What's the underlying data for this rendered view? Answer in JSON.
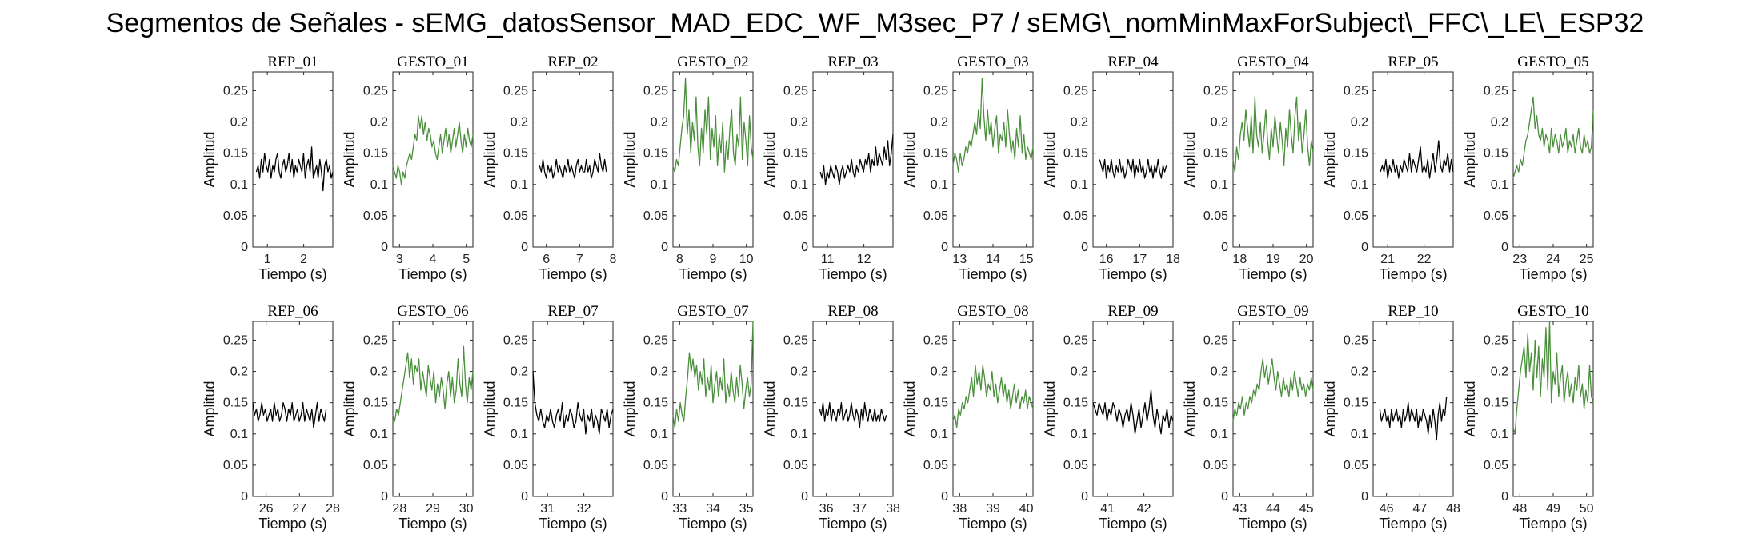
{
  "title": "Segmentos de Señales - sEMG_datosSensor_MAD_EDC_WF_M3sec_P7 / sEMG\\_nomMinMaxForSubject\\_FFC\\_LE\\_ESP32",
  "colors": {
    "rep": "#000000",
    "gesto": "#4a8f3b",
    "axis": "#262626"
  },
  "chart_data": {
    "type": "line",
    "xlabel": "Tiempo (s)",
    "ylabel": "Amplitud",
    "ylim": [
      0,
      0.28
    ],
    "yticks": [
      0,
      0.05,
      0.1,
      0.15,
      0.2,
      0.25
    ],
    "yticklabels": [
      "0",
      "0.05",
      "0.1",
      "0.15",
      "0.2",
      "0.25"
    ],
    "panels": [
      {
        "title": "REP_01",
        "kind": "rep",
        "xlim": [
          0.6,
          2.8
        ],
        "xticks": [
          1,
          2
        ],
        "x_start": 0.7,
        "x_end": 2.8,
        "values": [
          0.12,
          0.13,
          0.11,
          0.14,
          0.12,
          0.15,
          0.13,
          0.12,
          0.14,
          0.11,
          0.13,
          0.12,
          0.14,
          0.15,
          0.12,
          0.11,
          0.13,
          0.14,
          0.12,
          0.13,
          0.15,
          0.12,
          0.14,
          0.11,
          0.13,
          0.12,
          0.14,
          0.13,
          0.12,
          0.15,
          0.11,
          0.13,
          0.14,
          0.12,
          0.16,
          0.11,
          0.12,
          0.13,
          0.11,
          0.14,
          0.12,
          0.09,
          0.13,
          0.14,
          0.12,
          0.13,
          0.11,
          0.12
        ]
      },
      {
        "title": "GESTO_01",
        "kind": "gesto",
        "xlim": [
          2.8,
          5.2
        ],
        "xticks": [
          3,
          4,
          5
        ],
        "x_start": 2.8,
        "x_end": 5.2,
        "values": [
          0.13,
          0.12,
          0.11,
          0.13,
          0.12,
          0.1,
          0.12,
          0.11,
          0.13,
          0.14,
          0.15,
          0.14,
          0.16,
          0.18,
          0.17,
          0.21,
          0.19,
          0.21,
          0.18,
          0.2,
          0.17,
          0.19,
          0.18,
          0.16,
          0.17,
          0.15,
          0.14,
          0.16,
          0.18,
          0.15,
          0.17,
          0.19,
          0.16,
          0.18,
          0.15,
          0.17,
          0.19,
          0.16,
          0.18,
          0.2,
          0.17,
          0.15,
          0.18,
          0.16,
          0.19,
          0.17,
          0.16,
          0.18
        ]
      },
      {
        "title": "REP_02",
        "kind": "rep",
        "xlim": [
          5.6,
          8.0
        ],
        "xticks": [
          6,
          7,
          8
        ],
        "x_start": 5.8,
        "x_end": 7.8,
        "values": [
          0.13,
          0.12,
          0.14,
          0.12,
          0.11,
          0.13,
          0.12,
          0.13,
          0.11,
          0.12,
          0.14,
          0.12,
          0.13,
          0.12,
          0.11,
          0.13,
          0.12,
          0.14,
          0.12,
          0.13,
          0.12,
          0.11,
          0.13,
          0.14,
          0.12,
          0.13,
          0.12,
          0.12,
          0.14,
          0.12,
          0.13,
          0.11,
          0.12,
          0.14,
          0.13,
          0.12,
          0.15,
          0.13,
          0.12,
          0.14,
          0.12
        ]
      },
      {
        "title": "GESTO_02",
        "kind": "gesto",
        "xlim": [
          7.8,
          10.2
        ],
        "xticks": [
          8,
          9,
          10
        ],
        "x_start": 7.8,
        "x_end": 10.2,
        "values": [
          0.13,
          0.12,
          0.14,
          0.13,
          0.16,
          0.19,
          0.21,
          0.27,
          0.18,
          0.22,
          0.15,
          0.2,
          0.17,
          0.24,
          0.16,
          0.13,
          0.19,
          0.15,
          0.22,
          0.18,
          0.24,
          0.14,
          0.19,
          0.16,
          0.21,
          0.13,
          0.18,
          0.15,
          0.2,
          0.12,
          0.17,
          0.14,
          0.19,
          0.22,
          0.15,
          0.13,
          0.18,
          0.16,
          0.24,
          0.14,
          0.2,
          0.17,
          0.13,
          0.21,
          0.16,
          0.14
        ]
      },
      {
        "title": "REP_03",
        "kind": "rep",
        "xlim": [
          10.6,
          12.8
        ],
        "xticks": [
          11,
          12
        ],
        "x_start": 10.8,
        "x_end": 12.8,
        "values": [
          0.12,
          0.11,
          0.13,
          0.1,
          0.12,
          0.11,
          0.13,
          0.12,
          0.11,
          0.13,
          0.12,
          0.1,
          0.12,
          0.13,
          0.11,
          0.12,
          0.13,
          0.12,
          0.14,
          0.12,
          0.11,
          0.13,
          0.12,
          0.14,
          0.13,
          0.12,
          0.14,
          0.13,
          0.15,
          0.12,
          0.14,
          0.13,
          0.16,
          0.13,
          0.15,
          0.14,
          0.13,
          0.16,
          0.14,
          0.17,
          0.13,
          0.15,
          0.18
        ]
      },
      {
        "title": "GESTO_03",
        "kind": "gesto",
        "xlim": [
          12.8,
          15.2
        ],
        "xticks": [
          13,
          14,
          15
        ],
        "x_start": 12.8,
        "x_end": 15.2,
        "values": [
          0.13,
          0.15,
          0.14,
          0.12,
          0.15,
          0.13,
          0.14,
          0.16,
          0.15,
          0.17,
          0.16,
          0.18,
          0.2,
          0.18,
          0.22,
          0.19,
          0.27,
          0.21,
          0.17,
          0.22,
          0.18,
          0.2,
          0.16,
          0.19,
          0.21,
          0.15,
          0.18,
          0.17,
          0.2,
          0.16,
          0.22,
          0.18,
          0.15,
          0.17,
          0.14,
          0.19,
          0.16,
          0.21,
          0.15,
          0.18,
          0.14,
          0.16,
          0.15,
          0.14,
          0.16
        ]
      },
      {
        "title": "REP_04",
        "kind": "rep",
        "xlim": [
          15.6,
          18.0
        ],
        "xticks": [
          16,
          17,
          18
        ],
        "x_start": 15.8,
        "x_end": 17.8,
        "values": [
          0.14,
          0.13,
          0.12,
          0.14,
          0.11,
          0.13,
          0.12,
          0.14,
          0.12,
          0.11,
          0.13,
          0.12,
          0.14,
          0.12,
          0.13,
          0.11,
          0.12,
          0.14,
          0.13,
          0.12,
          0.14,
          0.11,
          0.13,
          0.12,
          0.14,
          0.12,
          0.13,
          0.11,
          0.12,
          0.14,
          0.12,
          0.13,
          0.11,
          0.13,
          0.12,
          0.14,
          0.12,
          0.11,
          0.13,
          0.12,
          0.13
        ]
      },
      {
        "title": "GESTO_04",
        "kind": "gesto",
        "xlim": [
          17.8,
          20.2
        ],
        "xticks": [
          18,
          19,
          20
        ],
        "x_start": 17.8,
        "x_end": 20.2,
        "values": [
          0.14,
          0.12,
          0.16,
          0.14,
          0.18,
          0.2,
          0.17,
          0.22,
          0.19,
          0.16,
          0.21,
          0.15,
          0.24,
          0.18,
          0.16,
          0.2,
          0.15,
          0.18,
          0.22,
          0.17,
          0.14,
          0.19,
          0.16,
          0.21,
          0.18,
          0.15,
          0.2,
          0.17,
          0.13,
          0.19,
          0.16,
          0.22,
          0.18,
          0.15,
          0.21,
          0.24,
          0.17,
          0.2,
          0.15,
          0.18,
          0.22,
          0.16,
          0.13,
          0.17,
          0.15
        ]
      },
      {
        "title": "REP_05",
        "kind": "rep",
        "xlim": [
          20.6,
          22.8
        ],
        "xticks": [
          21,
          22
        ],
        "x_start": 20.8,
        "x_end": 22.8,
        "values": [
          0.12,
          0.13,
          0.12,
          0.14,
          0.11,
          0.13,
          0.12,
          0.14,
          0.12,
          0.13,
          0.11,
          0.13,
          0.12,
          0.14,
          0.13,
          0.12,
          0.15,
          0.12,
          0.14,
          0.13,
          0.12,
          0.14,
          0.16,
          0.12,
          0.13,
          0.12,
          0.14,
          0.11,
          0.13,
          0.15,
          0.12,
          0.14,
          0.17,
          0.13,
          0.12,
          0.14,
          0.13,
          0.15,
          0.12,
          0.14,
          0.12
        ]
      },
      {
        "title": "GESTO_05",
        "kind": "gesto",
        "xlim": [
          22.8,
          25.2
        ],
        "xticks": [
          23,
          24,
          25
        ],
        "x_start": 22.8,
        "x_end": 25.2,
        "values": [
          0.11,
          0.12,
          0.13,
          0.12,
          0.14,
          0.13,
          0.15,
          0.17,
          0.18,
          0.2,
          0.22,
          0.24,
          0.19,
          0.21,
          0.18,
          0.17,
          0.19,
          0.16,
          0.18,
          0.17,
          0.15,
          0.19,
          0.16,
          0.18,
          0.17,
          0.15,
          0.18,
          0.16,
          0.17,
          0.19,
          0.15,
          0.17,
          0.16,
          0.18,
          0.15,
          0.17,
          0.19,
          0.16,
          0.15,
          0.18,
          0.16,
          0.17,
          0.15,
          0.16,
          0.22
        ]
      },
      {
        "title": "REP_06",
        "kind": "rep",
        "xlim": [
          25.6,
          28.0
        ],
        "xticks": [
          26,
          27,
          28
        ],
        "x_start": 25.6,
        "x_end": 27.8,
        "values": [
          0.15,
          0.13,
          0.14,
          0.12,
          0.13,
          0.15,
          0.13,
          0.14,
          0.12,
          0.13,
          0.14,
          0.12,
          0.15,
          0.13,
          0.14,
          0.12,
          0.13,
          0.15,
          0.14,
          0.12,
          0.14,
          0.13,
          0.15,
          0.12,
          0.13,
          0.14,
          0.12,
          0.13,
          0.15,
          0.12,
          0.14,
          0.13,
          0.12,
          0.14,
          0.11,
          0.13,
          0.15,
          0.12,
          0.14,
          0.13,
          0.12,
          0.14
        ]
      },
      {
        "title": "GESTO_06",
        "kind": "gesto",
        "xlim": [
          27.8,
          30.2
        ],
        "xticks": [
          28,
          29,
          30
        ],
        "x_start": 27.8,
        "x_end": 30.2,
        "values": [
          0.13,
          0.12,
          0.14,
          0.13,
          0.15,
          0.17,
          0.19,
          0.21,
          0.23,
          0.19,
          0.22,
          0.18,
          0.21,
          0.2,
          0.22,
          0.17,
          0.2,
          0.18,
          0.16,
          0.21,
          0.19,
          0.17,
          0.2,
          0.15,
          0.18,
          0.16,
          0.19,
          0.17,
          0.14,
          0.18,
          0.2,
          0.16,
          0.19,
          0.15,
          0.17,
          0.22,
          0.18,
          0.16,
          0.24,
          0.18,
          0.15,
          0.19,
          0.17,
          0.2
        ]
      },
      {
        "title": "REP_07",
        "kind": "rep",
        "xlim": [
          30.6,
          32.8
        ],
        "xticks": [
          31,
          32
        ],
        "x_start": 30.6,
        "x_end": 32.8,
        "values": [
          0.2,
          0.15,
          0.13,
          0.12,
          0.14,
          0.12,
          0.11,
          0.13,
          0.12,
          0.14,
          0.12,
          0.11,
          0.13,
          0.14,
          0.12,
          0.15,
          0.11,
          0.13,
          0.12,
          0.14,
          0.13,
          0.11,
          0.12,
          0.15,
          0.13,
          0.12,
          0.14,
          0.1,
          0.13,
          0.12,
          0.14,
          0.11,
          0.13,
          0.12,
          0.1,
          0.14,
          0.13,
          0.12,
          0.14,
          0.11,
          0.13,
          0.14
        ]
      },
      {
        "title": "GESTO_07",
        "kind": "gesto",
        "xlim": [
          32.8,
          35.2
        ],
        "xticks": [
          33,
          34,
          35
        ],
        "x_start": 32.8,
        "x_end": 35.2,
        "values": [
          0.13,
          0.11,
          0.14,
          0.12,
          0.15,
          0.13,
          0.12,
          0.16,
          0.19,
          0.23,
          0.2,
          0.22,
          0.19,
          0.21,
          0.17,
          0.2,
          0.18,
          0.22,
          0.16,
          0.19,
          0.17,
          0.21,
          0.15,
          0.18,
          0.2,
          0.16,
          0.19,
          0.17,
          0.22,
          0.15,
          0.18,
          0.16,
          0.2,
          0.17,
          0.15,
          0.19,
          0.16,
          0.21,
          0.18,
          0.14,
          0.17,
          0.19,
          0.16,
          0.18,
          0.28
        ]
      },
      {
        "title": "REP_08",
        "kind": "rep",
        "xlim": [
          35.6,
          38.0
        ],
        "xticks": [
          36,
          37,
          38
        ],
        "x_start": 35.8,
        "x_end": 37.8,
        "values": [
          0.14,
          0.13,
          0.15,
          0.12,
          0.14,
          0.13,
          0.15,
          0.12,
          0.14,
          0.13,
          0.12,
          0.14,
          0.13,
          0.15,
          0.12,
          0.13,
          0.14,
          0.12,
          0.13,
          0.15,
          0.13,
          0.12,
          0.14,
          0.13,
          0.11,
          0.14,
          0.12,
          0.15,
          0.13,
          0.12,
          0.14,
          0.13,
          0.12,
          0.14,
          0.12,
          0.13,
          0.12,
          0.14,
          0.13,
          0.12,
          0.13
        ]
      },
      {
        "title": "GESTO_08",
        "kind": "gesto",
        "xlim": [
          37.8,
          40.2
        ],
        "xticks": [
          38,
          39,
          40
        ],
        "x_start": 37.8,
        "x_end": 40.2,
        "values": [
          0.12,
          0.13,
          0.11,
          0.14,
          0.13,
          0.15,
          0.14,
          0.16,
          0.15,
          0.17,
          0.19,
          0.16,
          0.21,
          0.18,
          0.2,
          0.17,
          0.21,
          0.19,
          0.16,
          0.18,
          0.17,
          0.2,
          0.16,
          0.18,
          0.15,
          0.17,
          0.19,
          0.16,
          0.18,
          0.15,
          0.17,
          0.14,
          0.16,
          0.18,
          0.15,
          0.17,
          0.14,
          0.16,
          0.15,
          0.17,
          0.14,
          0.16,
          0.15,
          0.14
        ]
      },
      {
        "title": "REP_09",
        "kind": "rep",
        "xlim": [
          40.6,
          42.8
        ],
        "xticks": [
          41,
          42
        ],
        "x_start": 40.6,
        "x_end": 42.8,
        "values": [
          0.15,
          0.14,
          0.13,
          0.15,
          0.14,
          0.13,
          0.15,
          0.12,
          0.14,
          0.13,
          0.15,
          0.14,
          0.12,
          0.14,
          0.13,
          0.11,
          0.13,
          0.14,
          0.12,
          0.15,
          0.13,
          0.1,
          0.12,
          0.14,
          0.11,
          0.13,
          0.15,
          0.12,
          0.14,
          0.17,
          0.13,
          0.11,
          0.14,
          0.12,
          0.1,
          0.13,
          0.12,
          0.14,
          0.11,
          0.13,
          0.12
        ]
      },
      {
        "title": "GESTO_09",
        "kind": "gesto",
        "xlim": [
          42.8,
          45.2
        ],
        "xticks": [
          43,
          44,
          45
        ],
        "x_start": 42.8,
        "x_end": 45.2,
        "values": [
          0.12,
          0.14,
          0.13,
          0.15,
          0.14,
          0.16,
          0.13,
          0.15,
          0.14,
          0.16,
          0.15,
          0.17,
          0.16,
          0.18,
          0.17,
          0.2,
          0.22,
          0.19,
          0.21,
          0.18,
          0.2,
          0.22,
          0.19,
          0.17,
          0.2,
          0.18,
          0.16,
          0.19,
          0.17,
          0.18,
          0.16,
          0.19,
          0.17,
          0.2,
          0.18,
          0.16,
          0.19,
          0.17,
          0.18,
          0.16,
          0.18,
          0.17,
          0.19,
          0.17
        ]
      },
      {
        "title": "REP_10",
        "kind": "rep",
        "xlim": [
          45.6,
          48.0
        ],
        "xticks": [
          46,
          47,
          48
        ],
        "x_start": 45.8,
        "x_end": 47.8,
        "values": [
          0.14,
          0.12,
          0.13,
          0.14,
          0.12,
          0.13,
          0.11,
          0.14,
          0.12,
          0.13,
          0.14,
          0.12,
          0.13,
          0.11,
          0.14,
          0.12,
          0.13,
          0.15,
          0.12,
          0.14,
          0.13,
          0.12,
          0.14,
          0.11,
          0.13,
          0.12,
          0.14,
          0.13,
          0.12,
          0.1,
          0.13,
          0.11,
          0.14,
          0.12,
          0.09,
          0.13,
          0.15,
          0.12,
          0.14,
          0.13,
          0.16
        ]
      },
      {
        "title": "GESTO_10",
        "kind": "gesto",
        "xlim": [
          47.8,
          50.2
        ],
        "xticks": [
          48,
          49,
          50
        ],
        "x_start": 47.8,
        "x_end": 50.2,
        "values": [
          0.11,
          0.1,
          0.14,
          0.17,
          0.2,
          0.22,
          0.24,
          0.19,
          0.26,
          0.2,
          0.23,
          0.17,
          0.25,
          0.19,
          0.24,
          0.16,
          0.22,
          0.19,
          0.27,
          0.17,
          0.28,
          0.15,
          0.2,
          0.18,
          0.23,
          0.16,
          0.19,
          0.21,
          0.15,
          0.18,
          0.2,
          0.16,
          0.18,
          0.15,
          0.19,
          0.17,
          0.21,
          0.16,
          0.18,
          0.14,
          0.17,
          0.15,
          0.21,
          0.16,
          0.15
        ]
      }
    ]
  }
}
